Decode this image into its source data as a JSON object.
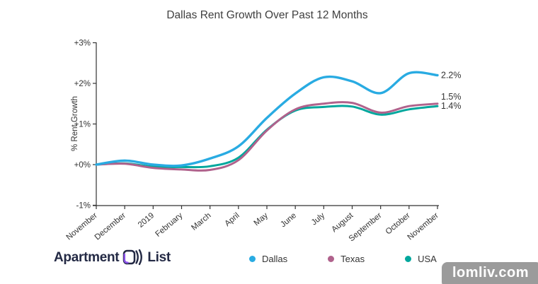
{
  "chart": {
    "title": "Dallas Rent Growth Over Past 12 Months",
    "y_axis_label": "% Rent Growth"
  },
  "chart_data": {
    "type": "line",
    "title": "Dallas Rent Growth Over Past 12 Months",
    "xlabel": "",
    "ylabel": "% Rent Growth",
    "ylim": [
      -1,
      3
    ],
    "grid": false,
    "legend_position": "bottom",
    "x": [
      "November",
      "December",
      "2019",
      "February",
      "March",
      "April",
      "May",
      "June",
      "July",
      "August",
      "September",
      "October",
      "November"
    ],
    "y_ticks": [
      {
        "label": "+3%",
        "value": 3
      },
      {
        "label": "+2%",
        "value": 2
      },
      {
        "label": "+1%",
        "value": 1
      },
      {
        "label": "+0%",
        "value": 0
      },
      {
        "label": "-1%",
        "value": -1
      }
    ],
    "series": [
      {
        "name": "Dallas",
        "color": "#29ABE2",
        "line_width": 3.4,
        "end_label": "2.2%",
        "values": [
          0,
          0.1,
          0,
          -0.02,
          0.15,
          0.45,
          1.15,
          1.75,
          2.15,
          2.05,
          1.76,
          2.25,
          2.2
        ]
      },
      {
        "name": "Texas",
        "color": "#B0628C",
        "line_width": 3,
        "end_label": "1.5%",
        "values": [
          0,
          0.02,
          -0.08,
          -0.12,
          -0.13,
          0.11,
          0.84,
          1.36,
          1.5,
          1.52,
          1.28,
          1.44,
          1.5
        ]
      },
      {
        "name": "USA",
        "color": "#00A79D",
        "line_width": 3,
        "end_label": "1.4%",
        "values": [
          0,
          0.03,
          -0.05,
          -0.06,
          -0.04,
          0.17,
          0.86,
          1.33,
          1.42,
          1.43,
          1.23,
          1.36,
          1.44
        ]
      }
    ],
    "axis_color": "#333333",
    "tick_label_color": "#333333",
    "end_label_color": "#333333"
  },
  "footer": {
    "logo_text_left": "Apartment",
    "logo_text_right": "List",
    "watermark": "lomliv.com"
  }
}
